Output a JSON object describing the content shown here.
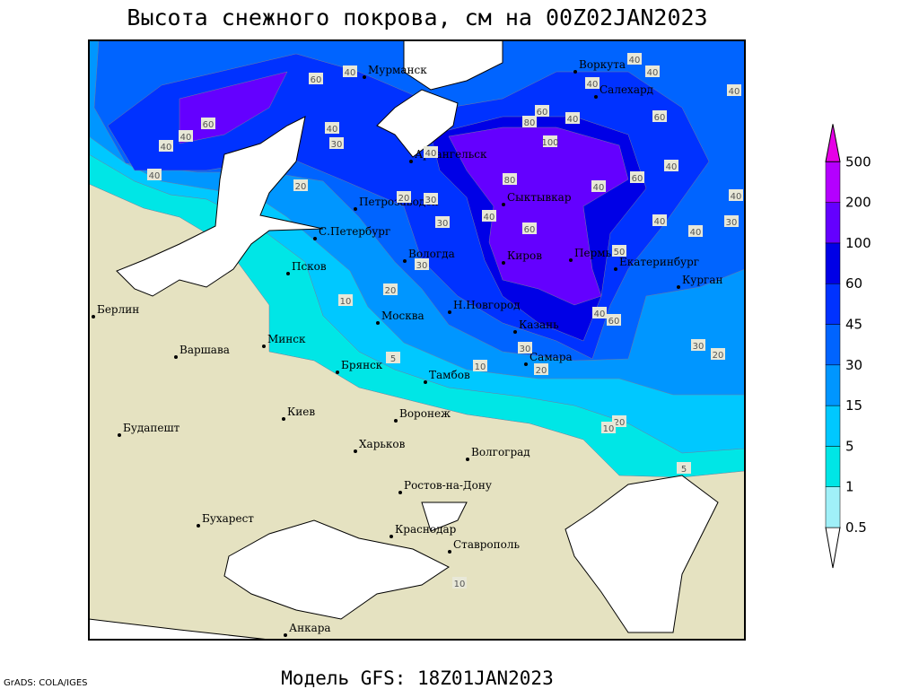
{
  "title": "Высота снежного покрова, см на 00Z02JAN2023",
  "footer": "Модель GFS: 18Z01JAN2023",
  "credit": "GrADS: COLA/IGES",
  "legend": {
    "levels": [
      0.5,
      1,
      5,
      15,
      30,
      45,
      60,
      100,
      200,
      500
    ],
    "colors": [
      "#ffffff",
      "#a0f0f8",
      "#00e6e6",
      "#00c8ff",
      "#0096ff",
      "#0064ff",
      "#0032ff",
      "#0000e6",
      "#6400ff",
      "#b400ff",
      "#e600e6"
    ]
  },
  "cities": [
    "Мурманск",
    "Воркута",
    "Салехард",
    "Архангельск",
    "Петрозаводск",
    "Сыктывкар",
    "С.Петербург",
    "Вологда",
    "Киров",
    "Пермь",
    "Екатеринбург",
    "Курган",
    "Псков",
    "Берлин",
    "Н.Новгород",
    "Москва",
    "Казань",
    "Минск",
    "Варшава",
    "Самара",
    "Брянск",
    "Тамбов",
    "Киев",
    "Воронеж",
    "Будапешт",
    "Харьков",
    "Волгоград",
    "Ростов-на-Дону",
    "Бухарест",
    "Краснодар",
    "Ставрополь",
    "Анкара"
  ],
  "contour_labels": [
    60,
    40,
    40,
    40,
    40,
    40,
    60,
    40,
    80,
    60,
    100,
    40,
    30,
    40,
    40,
    40,
    60,
    40,
    20,
    80,
    60,
    40,
    40,
    40,
    20,
    30,
    40,
    30,
    40,
    40,
    30,
    60,
    30,
    50,
    20,
    10,
    40,
    60,
    30,
    20,
    30,
    5,
    20,
    10,
    20,
    10,
    5,
    10
  ]
}
